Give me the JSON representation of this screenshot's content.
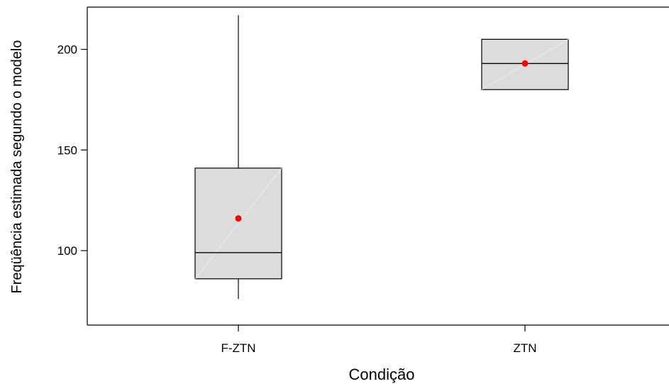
{
  "chart_data": {
    "type": "boxplot",
    "xlabel": "Condição",
    "ylabel": "Freqüência estimada segundo o modelo",
    "categories": [
      "F-ZTN",
      "ZTN"
    ],
    "ylim": [
      63,
      221
    ],
    "yticks": [
      100,
      150,
      200
    ],
    "grid": false,
    "boxes": [
      {
        "category": "F-ZTN",
        "whisker_low": 76,
        "q1": 86,
        "median": 99,
        "q3": 141,
        "whisker_high": 217,
        "mean": 116
      },
      {
        "category": "ZTN",
        "whisker_low": 180,
        "q1": 180,
        "median": 193,
        "q3": 205,
        "whisker_high": 205,
        "mean": 193
      }
    ],
    "colors": {
      "box_fill": "#dcdcdc",
      "line": "#000000",
      "mean_marker": "#ff0000"
    }
  }
}
